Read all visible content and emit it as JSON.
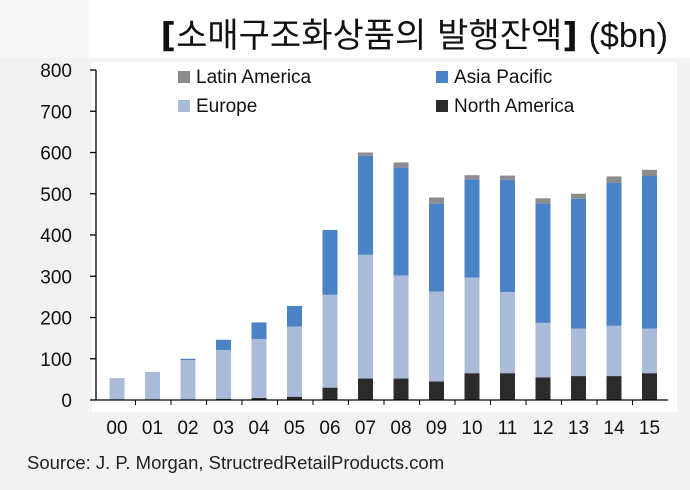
{
  "title": {
    "bracket_open": "[",
    "text": "소매구조화상품의 발행잔액",
    "bracket_close": "]",
    "unit": "($bn)"
  },
  "source": "Source: J. P. Morgan, StructredRetailProducts.com",
  "colors": {
    "north_america": "#2b2b2b",
    "europe": "#a9bbd8",
    "asia_pacific": "#4a82c6",
    "latin_america": "#8c8c8c"
  },
  "chart_data": {
    "type": "bar",
    "stacked": true,
    "categories": [
      "00",
      "01",
      "02",
      "03",
      "04",
      "05",
      "06",
      "07",
      "08",
      "09",
      "10",
      "11",
      "12",
      "13",
      "14",
      "15"
    ],
    "series": [
      {
        "name": "North America",
        "color_key": "north_america",
        "values": [
          0,
          0,
          0,
          3,
          5,
          8,
          30,
          52,
          52,
          45,
          65,
          65,
          55,
          58,
          58,
          65
        ]
      },
      {
        "name": "Europe",
        "color_key": "europe",
        "values": [
          53,
          68,
          97,
          118,
          143,
          170,
          225,
          300,
          250,
          218,
          232,
          197,
          132,
          115,
          122,
          108
        ]
      },
      {
        "name": "Asia Pacific",
        "color_key": "asia_pacific",
        "values": [
          0,
          0,
          3,
          25,
          40,
          50,
          157,
          240,
          262,
          213,
          238,
          272,
          290,
          315,
          347,
          370
        ]
      },
      {
        "name": "Latin America",
        "color_key": "latin_america",
        "values": [
          0,
          0,
          0,
          0,
          0,
          0,
          0,
          8,
          12,
          15,
          10,
          10,
          12,
          12,
          15,
          15
        ]
      }
    ],
    "legend": {
      "placement": "top",
      "entries": [
        {
          "name": "Latin America",
          "color_key": "latin_america"
        },
        {
          "name": "Asia Pacific",
          "color_key": "asia_pacific"
        },
        {
          "name": "Europe",
          "color_key": "europe"
        },
        {
          "name": "North America",
          "color_key": "north_america"
        }
      ]
    },
    "ylim": [
      0,
      800
    ],
    "yticks": [
      "0",
      "100",
      "200",
      "300",
      "400",
      "500",
      "600",
      "700",
      "800"
    ],
    "grid": false,
    "xlabel": "",
    "ylabel": ""
  }
}
